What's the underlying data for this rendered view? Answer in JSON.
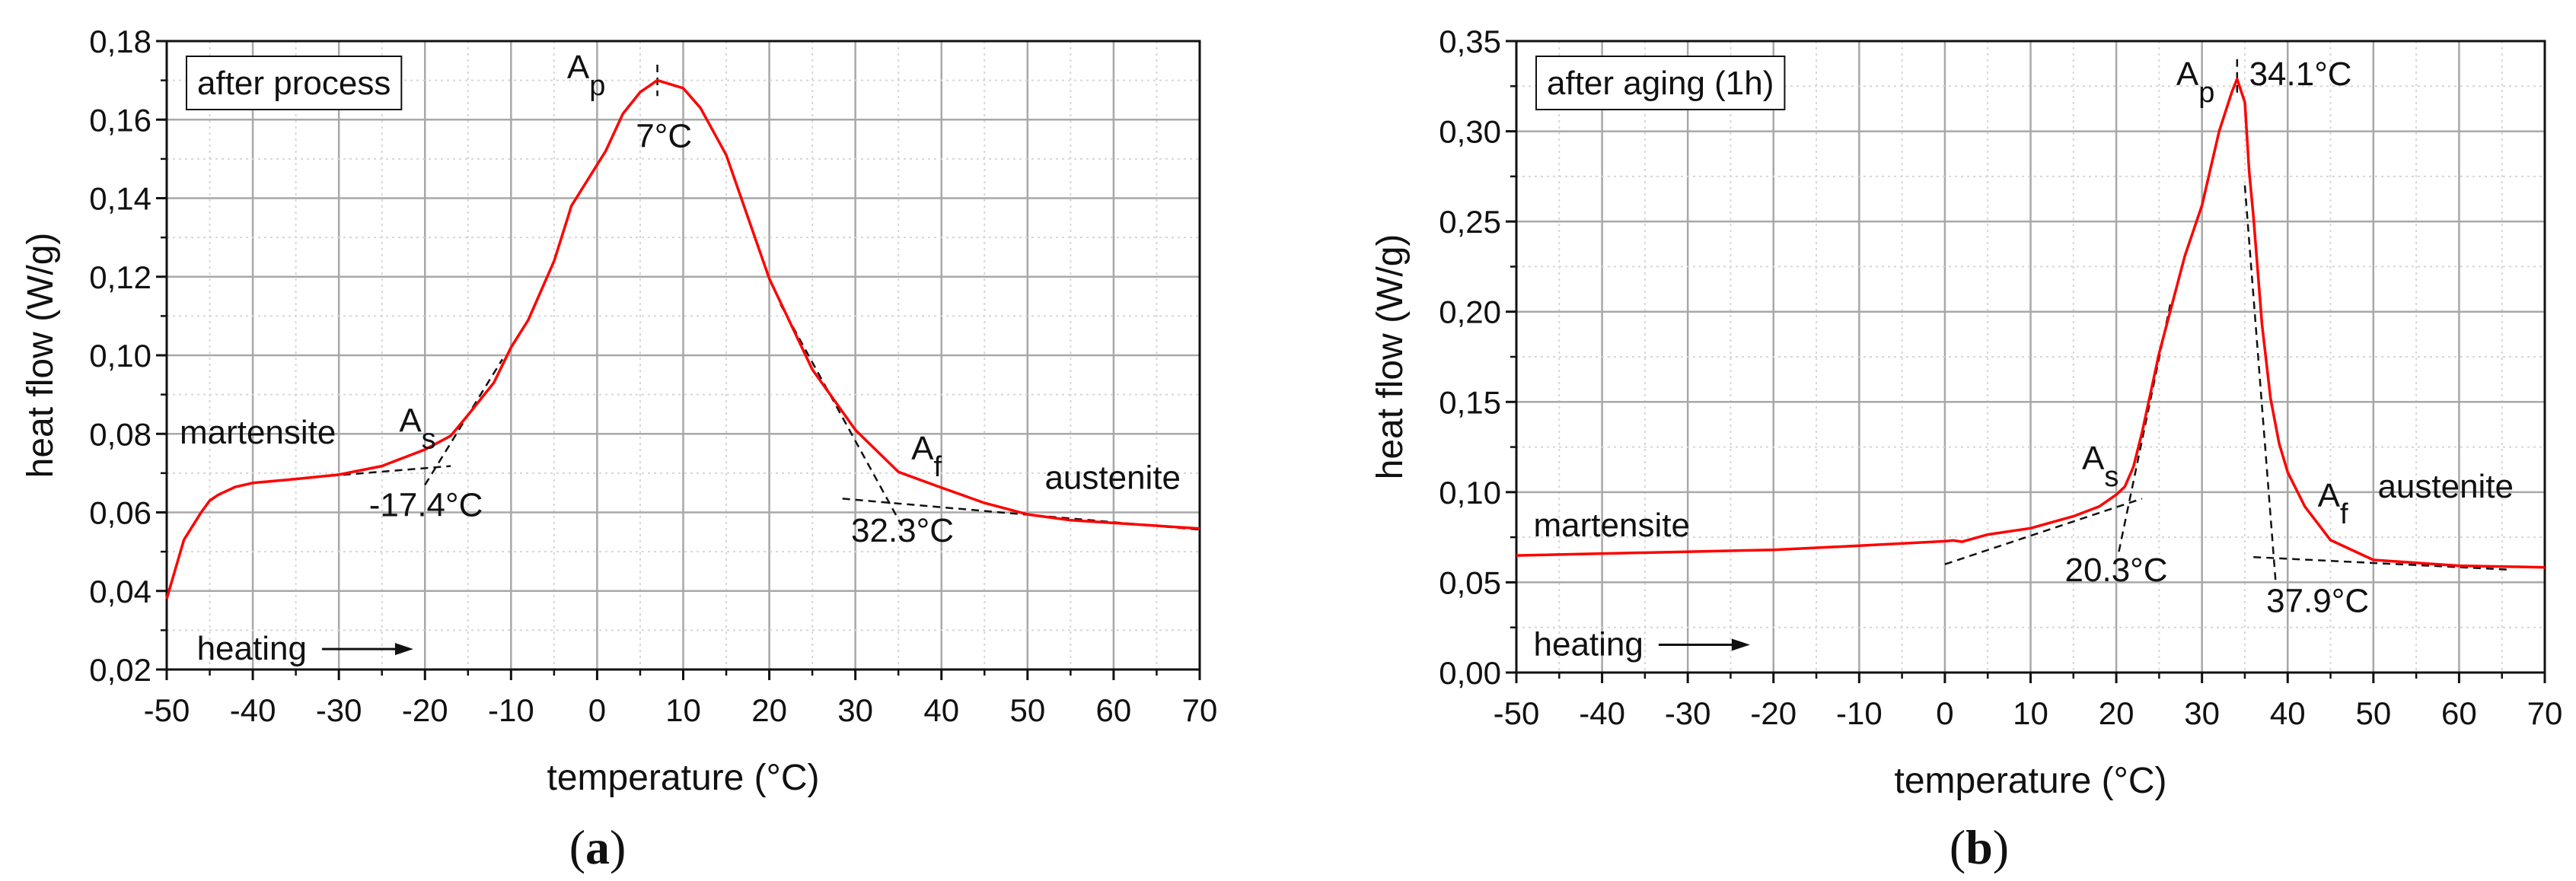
{
  "chart_data": [
    {
      "type": "line",
      "panel_label": "a",
      "legend_box": "after process",
      "xlabel": "temperature (°C)",
      "ylabel": "heat flow (W/g)",
      "xlim": [
        -50,
        70
      ],
      "ylim": [
        0.02,
        0.18
      ],
      "x_major": 10,
      "x_minor": 5,
      "y_major": 0.02,
      "y_minor": 0.01,
      "grid": true,
      "line_color": "#ff0000",
      "x_ticks": [
        "-50",
        "-40",
        "-30",
        "-20",
        "-10",
        "0",
        "10",
        "20",
        "30",
        "40",
        "50",
        "60",
        "70"
      ],
      "y_ticks": [
        "0,02",
        "0,04",
        "0,06",
        "0,08",
        "0,10",
        "0,12",
        "0,14",
        "0,16",
        "0,18"
      ],
      "x": [
        -50,
        -48,
        -46,
        -45,
        -44,
        -42,
        -40,
        -35,
        -30,
        -25,
        -20,
        -17,
        -15,
        -12,
        -10,
        -8,
        -5,
        -3.2,
        -3,
        0,
        1,
        3,
        5,
        7,
        10,
        12,
        15,
        20,
        25,
        30,
        35,
        40,
        45,
        50,
        55,
        60,
        70
      ],
      "y": [
        0.038,
        0.053,
        0.06,
        0.063,
        0.0645,
        0.0665,
        0.0675,
        0.0685,
        0.0696,
        0.0718,
        0.076,
        0.0795,
        0.0848,
        0.093,
        0.102,
        0.109,
        0.124,
        0.1365,
        0.138,
        0.1485,
        0.152,
        0.1615,
        0.167,
        0.17,
        0.168,
        0.163,
        0.151,
        0.1195,
        0.0964,
        0.081,
        0.0703,
        0.0663,
        0.0624,
        0.0595,
        0.058,
        0.0573,
        0.0559
      ],
      "tangents": [
        [
          [
            -35.5,
            0.0685
          ],
          [
            -17,
            0.0718
          ]
        ],
        [
          [
            -20,
            0.067
          ],
          [
            -11,
            0.099
          ]
        ],
        [
          [
            7,
            0.174
          ],
          [
            7,
            0.166
          ]
        ],
        [
          [
            21.3,
            0.113
          ],
          [
            35.4,
            0.0566
          ]
        ],
        [
          [
            28.5,
            0.0635
          ],
          [
            70,
            0.0556
          ]
        ]
      ],
      "annotations": [
        {
          "text": "A",
          "sub": "p",
          "x": -3.5,
          "y": 0.1705
        },
        {
          "text": "7°C",
          "x": 4.5,
          "y": 0.153
        },
        {
          "text": "A",
          "sub": "s",
          "x": -23,
          "y": 0.0805
        },
        {
          "text": "-17.4°C",
          "x": -26.5,
          "y": 0.059
        },
        {
          "text": "martensite",
          "x": -48.5,
          "y": 0.0775
        },
        {
          "text": "A",
          "sub": "f",
          "x": 36.5,
          "y": 0.0735
        },
        {
          "text": "austenite",
          "x": 52,
          "y": 0.066
        },
        {
          "text": "32.3°C",
          "x": 29.5,
          "y": 0.0525
        },
        {
          "text": "heating",
          "x": -46.5,
          "y": 0.0225
        }
      ]
    },
    {
      "type": "line",
      "panel_label": "b",
      "legend_box": "after aging (1h)",
      "xlabel": "temperature (°C)",
      "ylabel": "heat flow (W/g)",
      "xlim": [
        -50,
        70
      ],
      "ylim": [
        0,
        0.35
      ],
      "x_major": 10,
      "x_minor": 5,
      "y_major": 0.05,
      "y_minor": 0.025,
      "grid": true,
      "line_color": "#ff0000",
      "x_ticks": [
        "-50",
        "-40",
        "-30",
        "-20",
        "-10",
        "0",
        "10",
        "20",
        "30",
        "40",
        "50",
        "60",
        "70"
      ],
      "y_ticks": [
        "0,00",
        "0,05",
        "0,10",
        "0,15",
        "0,20",
        "0,25",
        "0,30",
        "0,35"
      ],
      "x": [
        -50,
        -20,
        -10,
        0,
        1,
        2,
        5,
        10,
        15,
        18,
        20,
        21,
        22,
        23,
        25,
        28,
        30,
        32,
        33.5,
        34.1,
        35,
        35.5,
        36,
        37,
        38,
        39,
        40,
        42,
        45,
        50,
        55,
        60,
        70
      ],
      "y": [
        0.0649,
        0.068,
        0.0703,
        0.0728,
        0.0732,
        0.0725,
        0.0765,
        0.08,
        0.0866,
        0.092,
        0.0986,
        0.103,
        0.114,
        0.133,
        0.177,
        0.231,
        0.259,
        0.3,
        0.322,
        0.329,
        0.316,
        0.278,
        0.253,
        0.193,
        0.152,
        0.127,
        0.111,
        0.092,
        0.0734,
        0.0624,
        0.0608,
        0.0592,
        0.0583
      ],
      "tangents": [
        [
          [
            0,
            0.06
          ],
          [
            23,
            0.0964
          ]
        ],
        [
          [
            20.3,
            0.067
          ],
          [
            26.3,
            0.204
          ]
        ],
        [
          [
            34.1,
            0.34
          ],
          [
            34.1,
            0.32
          ]
        ],
        [
          [
            35,
            0.27
          ],
          [
            38.6,
            0.05
          ]
        ],
        [
          [
            36,
            0.064
          ],
          [
            66,
            0.057
          ]
        ]
      ],
      "annotations": [
        {
          "text": "A",
          "sub": "p",
          "x": 27,
          "y": 0.3255
        },
        {
          "text": "34.1°C",
          "x": 35.5,
          "y": 0.3255
        },
        {
          "text": "A",
          "sub": "s",
          "x": 16,
          "y": 0.1125
        },
        {
          "text": "20.3°C",
          "x": 14,
          "y": 0.0505
        },
        {
          "text": "A",
          "sub": "f",
          "x": 43.5,
          "y": 0.092
        },
        {
          "text": "austenite",
          "x": 50.5,
          "y": 0.097
        },
        {
          "text": "37.9°C",
          "x": 37.5,
          "y": 0.0335
        },
        {
          "text": "martensite",
          "x": -48,
          "y": 0.0755
        },
        {
          "text": "heating",
          "x": -48,
          "y": 0.0095
        }
      ]
    }
  ]
}
